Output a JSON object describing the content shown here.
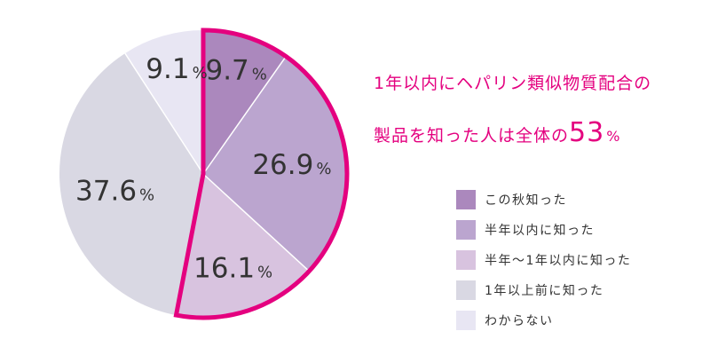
{
  "headline": {
    "line1": "1年以内にヘパリン類似物質配合の",
    "line2_prefix": "製品を知った人は全体の",
    "line2_value": "53",
    "line2_unit": "%"
  },
  "colors": {
    "accent": "#e4007f",
    "this_fall": "#ab88bd",
    "within_half_year": "#bba5cf",
    "half_to_one_year": "#d8c3df",
    "over_one_year": "#d9d8e3",
    "unknown": "#e8e6f3"
  },
  "chart_data": {
    "type": "pie",
    "title": "",
    "start_angle_deg": 0,
    "direction": "clockwise",
    "unit": "%",
    "highlighted_group": [
      "この秋知った",
      "半年以内に知った",
      "半年〜1年以内に知った"
    ],
    "highlighted_total": 53,
    "slices": [
      {
        "label": "この秋知った",
        "value": 9.7,
        "value_text": "9.7",
        "color": "#ab88bd"
      },
      {
        "label": "半年以内に知った",
        "value": 26.9,
        "value_text": "26.9",
        "color": "#bba5cf"
      },
      {
        "label": "半年〜1年以内に知った",
        "value": 16.1,
        "value_text": "16.1",
        "color": "#d8c3df"
      },
      {
        "label": "1年以上前に知った",
        "value": 37.6,
        "value_text": "37.6",
        "color": "#d9d8e3"
      },
      {
        "label": "わからない",
        "value": 9.1,
        "value_text": "9.1",
        "color": "#e8e6f3"
      }
    ]
  },
  "legend": {
    "items": [
      {
        "label": "この秋知った",
        "color": "#ab88bd"
      },
      {
        "label": "半年以内に知った",
        "color": "#bba5cf"
      },
      {
        "label": "半年〜1年以内に知った",
        "color": "#d8c3df"
      },
      {
        "label": "1年以上前に知った",
        "color": "#d9d8e3"
      },
      {
        "label": "わからない",
        "color": "#e8e6f3"
      }
    ]
  }
}
